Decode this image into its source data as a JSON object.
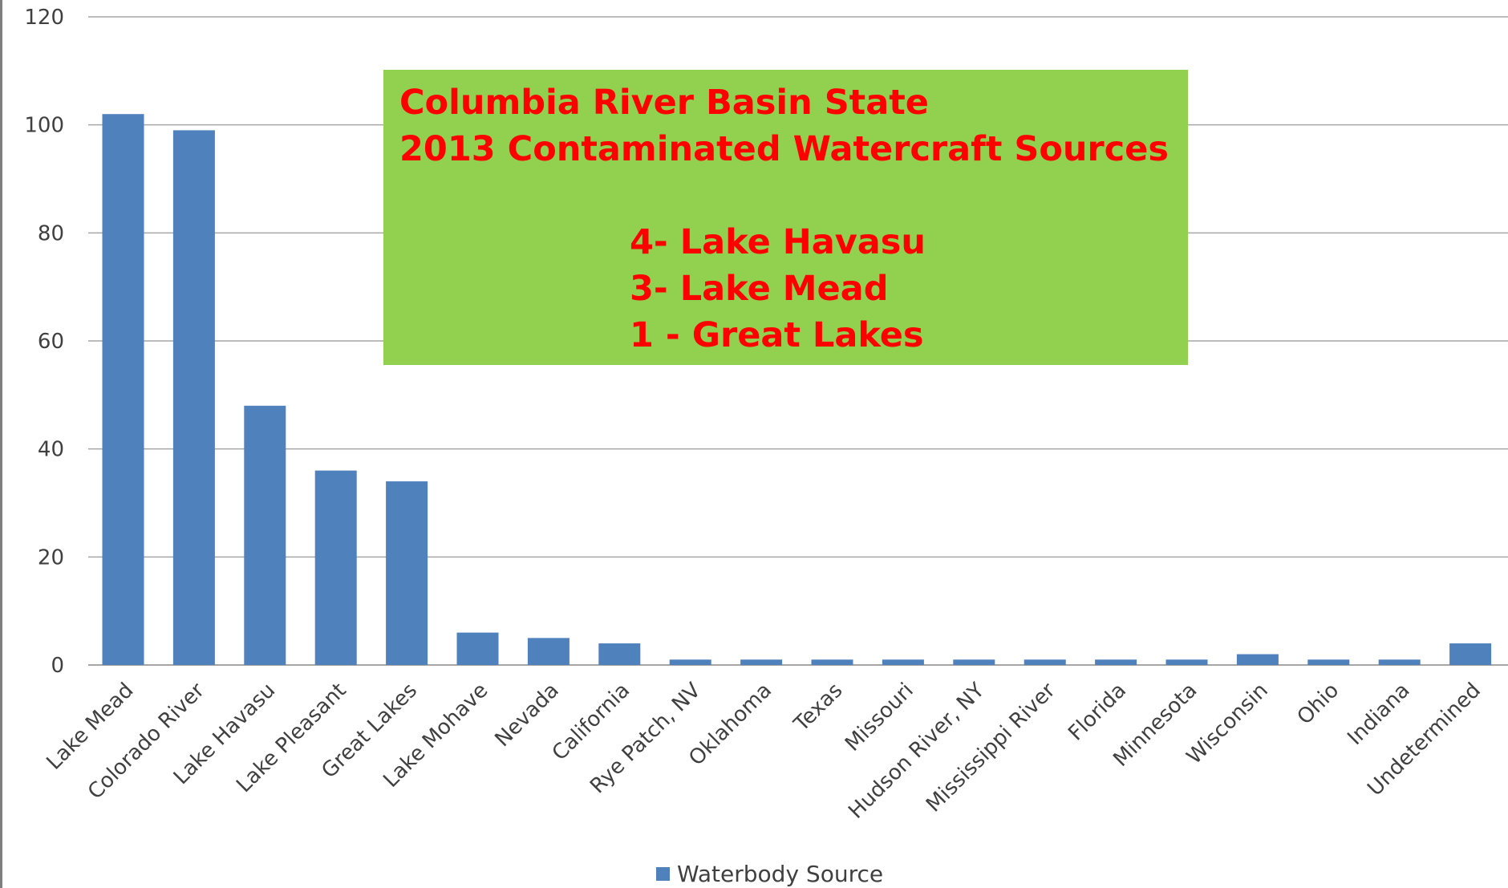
{
  "chart_data": {
    "type": "bar",
    "title": "",
    "xlabel": "",
    "ylabel": "",
    "categories": [
      "Lake Mead",
      "Colorado River",
      "Lake Havasu",
      "Lake Pleasant",
      "Great Lakes",
      "Lake Mohave",
      "Nevada",
      "California",
      "Rye Patch, NV",
      "Oklahoma",
      "Texas",
      "Missouri",
      "Hudson River, NY",
      "Mississippi River",
      "Florida",
      "Minnesota",
      "Wisconsin",
      "Ohio",
      "Indiana",
      "Undetermined"
    ],
    "series": [
      {
        "name": "Waterbody Source",
        "color": "#4f81bd",
        "values": [
          102,
          99,
          48,
          36,
          34,
          6,
          5,
          4,
          1,
          1,
          1,
          1,
          1,
          1,
          1,
          1,
          2,
          1,
          1,
          4
        ]
      }
    ],
    "ylim": [
      0,
      120
    ],
    "yticks": [
      0,
      20,
      40,
      60,
      80,
      100,
      120
    ],
    "grid": true,
    "legend_position": "bottom"
  },
  "callout": {
    "line1": "Columbia River Basin State",
    "line2": "2013 Contaminated Watercraft Sources",
    "item1": "4- Lake Havasu",
    "item2": "3- Lake Mead",
    "item3": "1 - Great Lakes",
    "background": "#92d050",
    "text_color": "#ff0000"
  },
  "colors": {
    "gridline": "#a6a6a6",
    "axis_text": "#404040"
  }
}
